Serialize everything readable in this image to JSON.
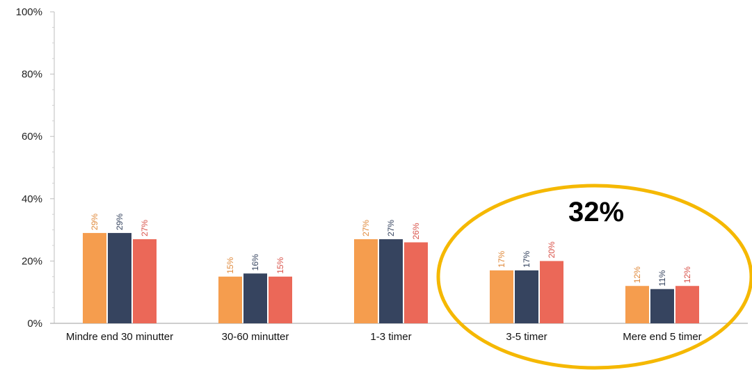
{
  "chart_data": {
    "type": "bar",
    "categories": [
      "Mindre end 30 minutter",
      "30-60 minutter",
      "1-3 timer",
      "3-5 timer",
      "Mere end 5 timer"
    ],
    "series": [
      {
        "values": [
          29,
          15,
          27,
          17,
          12
        ],
        "labels": [
          "29%",
          "15%",
          "27%",
          "17%",
          "12%"
        ],
        "color": "#F59D4E",
        "label_color": "#E08A3C"
      },
      {
        "values": [
          29,
          16,
          27,
          17,
          11
        ],
        "labels": [
          "29%",
          "16%",
          "27%",
          "17%",
          "11%"
        ],
        "color": "#36445F",
        "label_color": "#36445F"
      },
      {
        "values": [
          27,
          15,
          26,
          20,
          12
        ],
        "labels": [
          "27%",
          "15%",
          "26%",
          "20%",
          "12%"
        ],
        "color": "#EB6858",
        "label_color": "#D9534A"
      }
    ],
    "ylim": [
      0,
      100
    ],
    "yticks": [
      "0%",
      "20%",
      "40%",
      "60%",
      "80%",
      "100%"
    ],
    "ytick_values": [
      0,
      20,
      40,
      60,
      80,
      100
    ],
    "title": "",
    "xlabel": "",
    "ylabel": "",
    "grid": false,
    "annotation": {
      "text": "32%",
      "shape": "ellipse",
      "color": "#F5B800",
      "encloses": [
        "3-5 timer",
        "Mere end 5 timer"
      ]
    }
  }
}
